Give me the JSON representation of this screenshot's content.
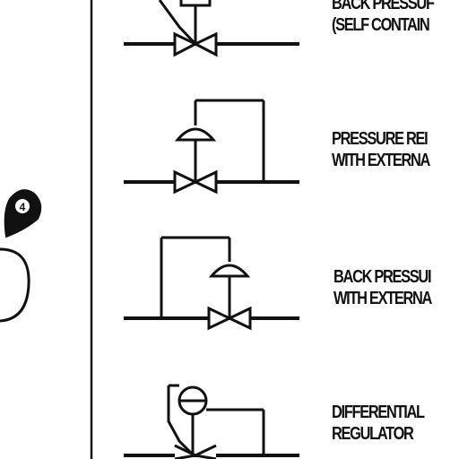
{
  "colors": {
    "ink": "#111111",
    "background": "#ffffff"
  },
  "symbols": [
    {
      "id": "back-pressure-self-contained",
      "label_lines": [
        "BACK PRESSUF",
        "(SELF CONTAIN"
      ]
    },
    {
      "id": "pressure-reducing-external",
      "label_lines": [
        "PRESSURE REI",
        "WITH EXTERNA"
      ]
    },
    {
      "id": "back-pressure-external",
      "label_lines": [
        "BACK PRESSUI",
        "WITH EXTERNA"
      ]
    },
    {
      "id": "differential-regulator",
      "label_lines": [
        "DIFFERENTIAL",
        "REGULATOR"
      ]
    }
  ],
  "left_panel": {
    "marker_icon": "map-pin-icon",
    "marker_text": "4"
  }
}
